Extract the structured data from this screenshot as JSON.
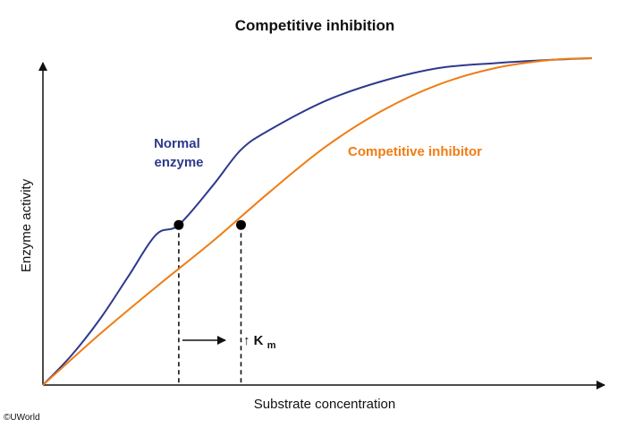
{
  "chart_data": {
    "type": "line",
    "title": "Competitive inhibition",
    "xlabel": "Substrate concentration",
    "ylabel": "Enzyme activity",
    "xlim": [
      0,
      1
    ],
    "ylim": [
      0,
      1
    ],
    "grid": false,
    "series": [
      {
        "name": "Normal\nenzyme",
        "name_lines": [
          "Normal",
          "enzyme"
        ],
        "color": "#2e3a8c",
        "x": [
          0,
          0.05,
          0.1,
          0.15,
          0.2,
          0.24,
          0.3,
          0.35,
          0.4,
          0.5,
          0.6,
          0.7,
          0.8,
          0.9,
          0.97
        ],
        "y": [
          0,
          0.09,
          0.2,
          0.33,
          0.46,
          0.49,
          0.61,
          0.72,
          0.78,
          0.87,
          0.93,
          0.97,
          0.985,
          0.995,
          1.0
        ]
      },
      {
        "name": "Competitive inhibitor",
        "color": "#f07c13",
        "x": [
          0,
          0.1,
          0.2,
          0.3,
          0.4,
          0.5,
          0.6,
          0.7,
          0.8,
          0.9,
          0.97
        ],
        "y": [
          0,
          0.155,
          0.3,
          0.44,
          0.59,
          0.73,
          0.84,
          0.92,
          0.97,
          0.995,
          1.0
        ]
      }
    ],
    "markers": [
      {
        "series": "Normal enzyme",
        "x": 0.24,
        "y": 0.49
      },
      {
        "series": "Competitive inhibitor",
        "x": 0.35,
        "y": 0.49
      }
    ],
    "annotation": {
      "symbol": "↑",
      "main": "K",
      "subscript": "m"
    }
  },
  "footer": {
    "copyright": "©UWorld"
  }
}
